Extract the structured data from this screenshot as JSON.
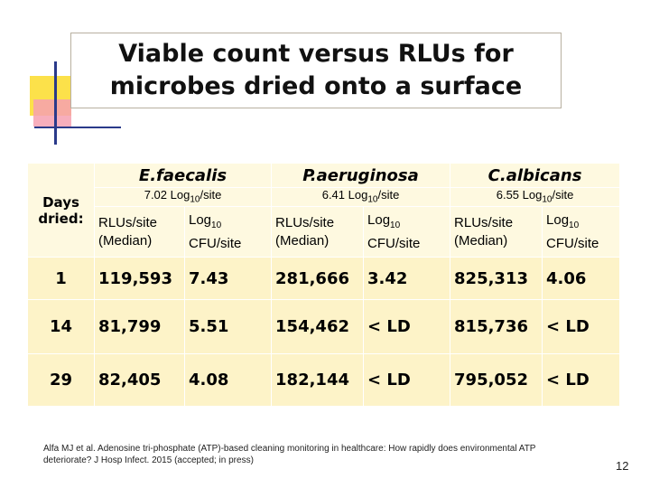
{
  "title": "Viable count versus RLUs for microbes dried onto a surface",
  "table": {
    "days_header": "Days dried:",
    "organisms": [
      {
        "name": "E.faecalis",
        "inoculum": {
          "pre": "7.02 Log",
          "sub": "10",
          "post": "/site"
        }
      },
      {
        "name": "P.aeruginosa",
        "inoculum": {
          "pre": "6.41 Log",
          "sub": "10",
          "post": "/site"
        }
      },
      {
        "name": "C.albicans",
        "inoculum": {
          "pre": "6.55 Log",
          "sub": "10",
          "post": "/site"
        }
      }
    ],
    "subheaders": {
      "rlu": "RLUs/site (Median)",
      "cfu": {
        "pre": "Log",
        "sub": "10",
        "post": "CFU/site"
      }
    },
    "rows": [
      [
        "1",
        "119,593",
        "7.43",
        "281,666",
        "3.42",
        "825,313",
        "4.06"
      ],
      [
        "14",
        "81,799",
        "5.51",
        "154,462",
        "< LD",
        "815,736",
        "< LD"
      ],
      [
        "29",
        "82,405",
        "4.08",
        "182,144",
        "< LD",
        "795,052",
        "< LD"
      ]
    ]
  },
  "footnote": "Alfa MJ et al. Adenosine tri-phosphate (ATP)-based cleaning monitoring in healthcare: How rapidly does environmental ATP deteriorate? J Hosp Infect. 2015 (accepted; in press)",
  "page_number": "12"
}
